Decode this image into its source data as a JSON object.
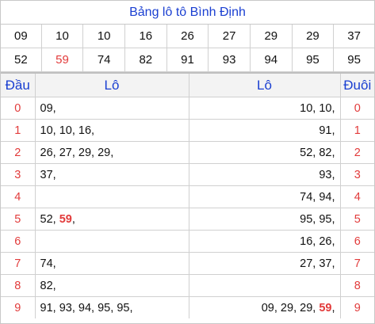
{
  "title": "Bảng lô tô Bình Định",
  "prizes_row1": [
    "09",
    "10",
    "10",
    "16",
    "26",
    "27",
    "29",
    "29",
    "37"
  ],
  "prizes_row2": [
    "52",
    "59",
    "74",
    "82",
    "91",
    "93",
    "94",
    "95",
    "95"
  ],
  "highlight_number": "59",
  "highlight_color": "#e23b3b",
  "accent_color": "#1a3fd1",
  "headers": {
    "dau": "Đầu",
    "lo_left": "Lô",
    "lo_right": "Lô",
    "duoi": "Đuôi"
  },
  "rows": [
    {
      "dau": "0",
      "left": "09,",
      "right": "10, 10,",
      "duoi": "0"
    },
    {
      "dau": "1",
      "left": "10, 10, 16,",
      "right": "91,",
      "duoi": "1"
    },
    {
      "dau": "2",
      "left": "26, 27, 29, 29,",
      "right": "52, 82,",
      "duoi": "2"
    },
    {
      "dau": "3",
      "left": "37,",
      "right": "93,",
      "duoi": "3"
    },
    {
      "dau": "4",
      "left": "",
      "right": "74, 94,",
      "duoi": "4"
    },
    {
      "dau": "5",
      "left": "52, 59,",
      "right": "95, 95,",
      "duoi": "5"
    },
    {
      "dau": "6",
      "left": "",
      "right": "16, 26,",
      "duoi": "6"
    },
    {
      "dau": "7",
      "left": "74,",
      "right": "27, 37,",
      "duoi": "7"
    },
    {
      "dau": "8",
      "left": "82,",
      "right": "",
      "duoi": "8"
    },
    {
      "dau": "9",
      "left": "91, 93, 94, 95, 95,",
      "right": "09, 29, 29, 59,",
      "duoi": "9"
    }
  ]
}
